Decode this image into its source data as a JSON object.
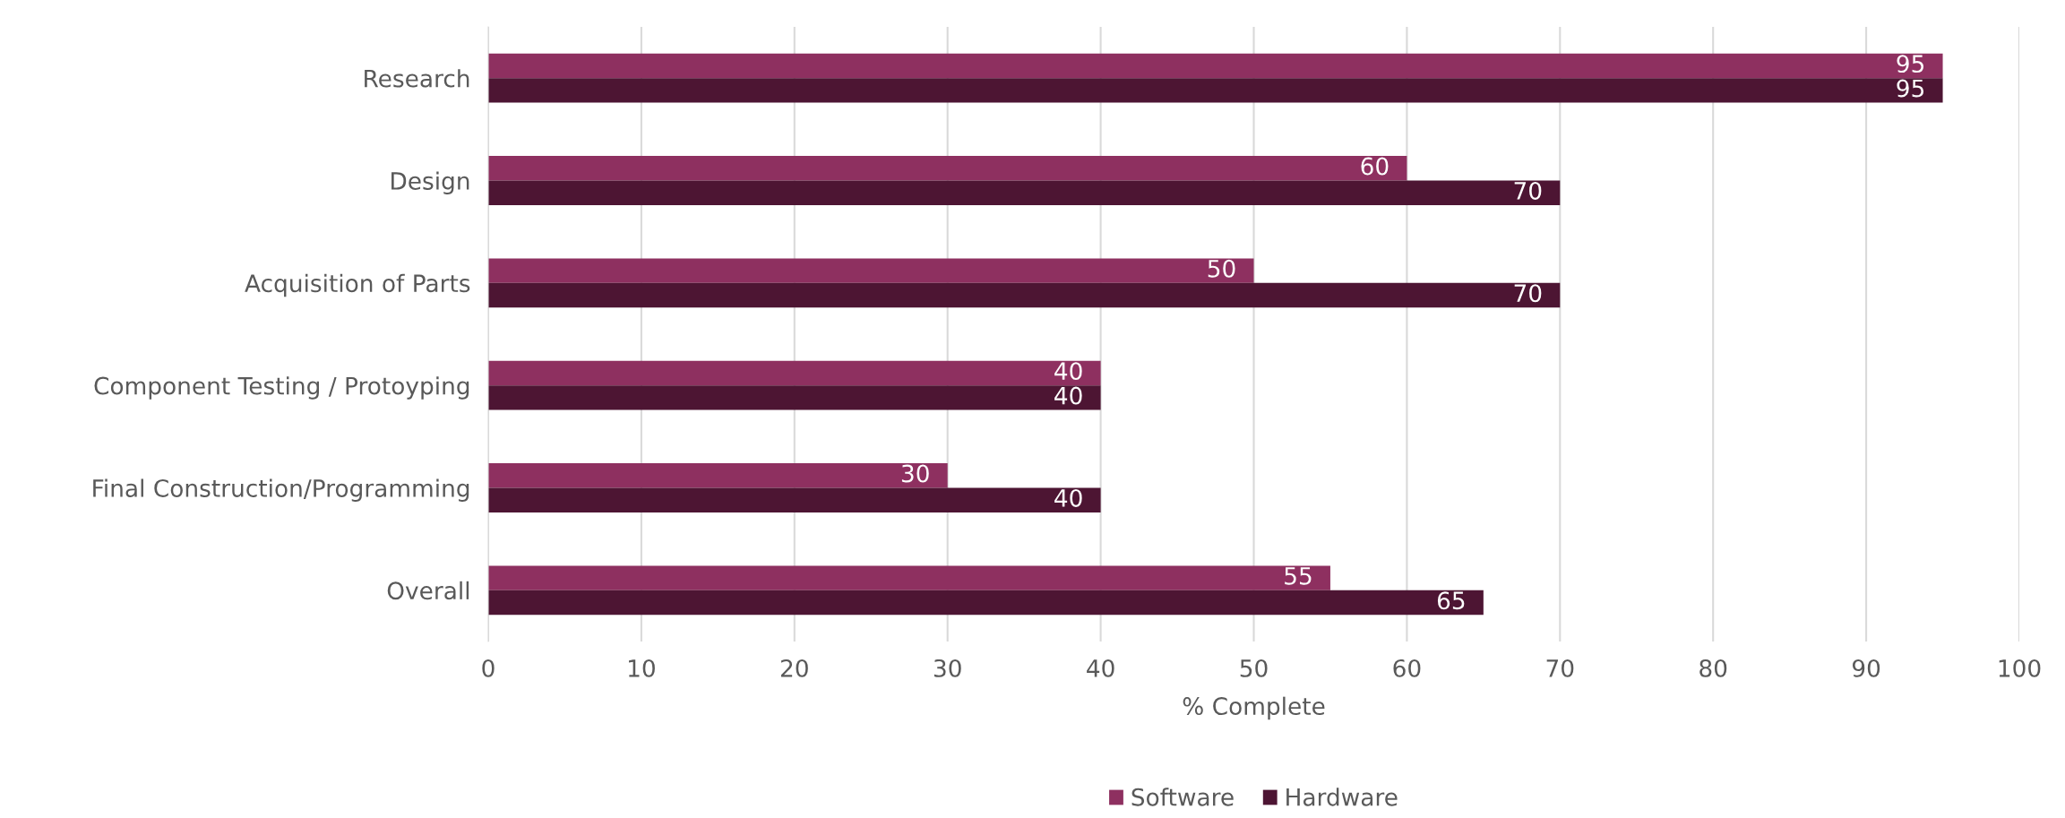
{
  "chart_data": {
    "type": "bar",
    "orientation": "horizontal",
    "xlabel": "% Complete",
    "categories": [
      "Research",
      "Design",
      "Acquisition of Parts",
      "Component Testing / Protoyping",
      "Final Construction/Programming",
      "Overall"
    ],
    "series": [
      {
        "name": "Software",
        "color": "#8e3060",
        "values": [
          95,
          60,
          50,
          40,
          30,
          55
        ]
      },
      {
        "name": "Hardware",
        "color": "#4d1533",
        "values": [
          95,
          70,
          70,
          40,
          40,
          65
        ]
      }
    ],
    "xlim": [
      0,
      100
    ],
    "xticks": [
      0,
      10,
      20,
      30,
      40,
      50,
      60,
      70,
      80,
      90,
      100
    ],
    "grid": "x",
    "legend": "bottom",
    "data_labels": true
  }
}
